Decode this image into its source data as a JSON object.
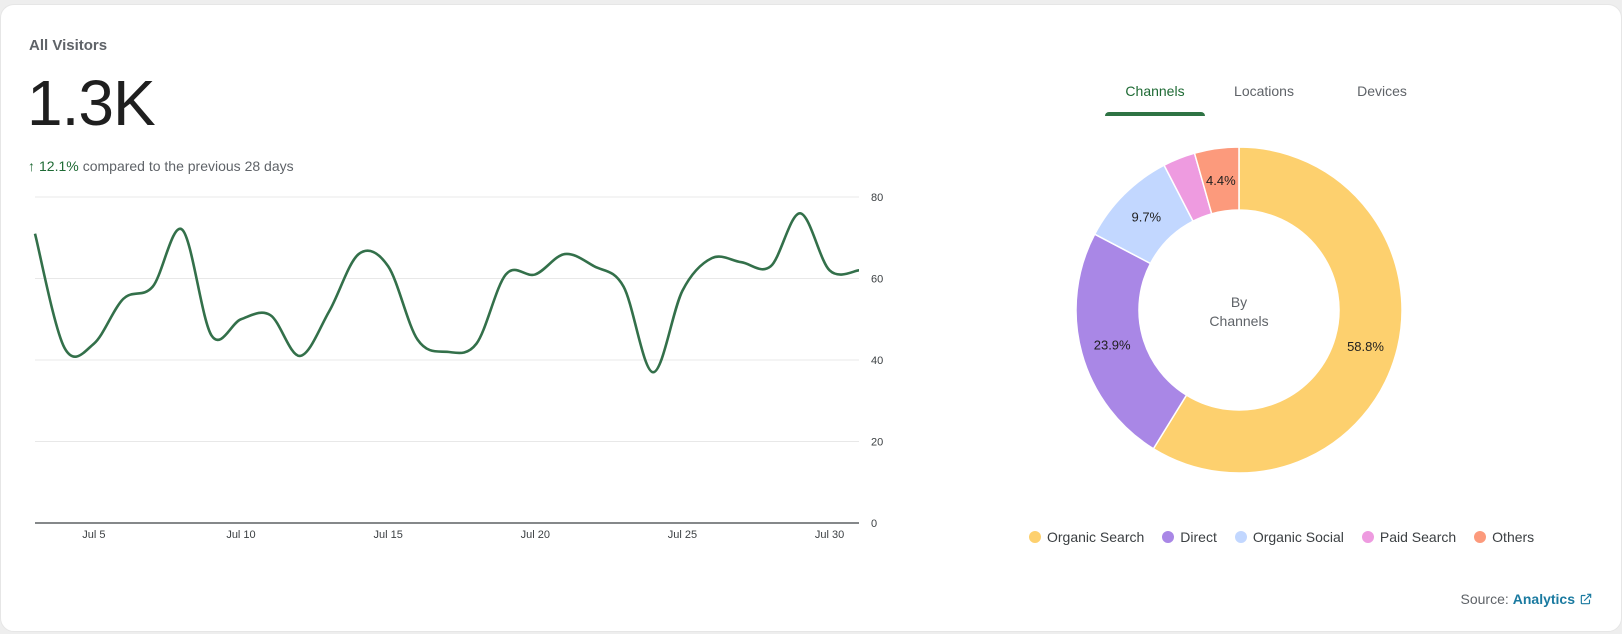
{
  "card": {
    "title": "All Visitors",
    "total": "1.3K",
    "change_pct": "12.1%",
    "change_text": "compared to the previous 28 days"
  },
  "chart_data": [
    {
      "type": "line",
      "x": [
        "Jul 3",
        "Jul 4",
        "Jul 5",
        "Jul 6",
        "Jul 7",
        "Jul 8",
        "Jul 9",
        "Jul 10",
        "Jul 11",
        "Jul 12",
        "Jul 13",
        "Jul 14",
        "Jul 15",
        "Jul 16",
        "Jul 17",
        "Jul 18",
        "Jul 19",
        "Jul 20",
        "Jul 21",
        "Jul 22",
        "Jul 23",
        "Jul 24",
        "Jul 25",
        "Jul 26",
        "Jul 27",
        "Jul 28",
        "Jul 29",
        "Jul 30",
        "Jul 31"
      ],
      "series": [
        {
          "values": [
            71,
            43,
            44,
            55,
            58,
            72,
            46,
            50,
            51,
            41,
            52,
            66,
            63,
            45,
            42,
            44,
            61,
            61,
            66,
            63,
            58,
            37,
            57,
            65,
            64,
            63,
            76,
            62,
            62
          ]
        }
      ],
      "x_tick_labels": [
        "Jul 5",
        "Jul 10",
        "Jul 15",
        "Jul 20",
        "Jul 25",
        "Jul 30"
      ],
      "y_tick_labels": [
        "0",
        "20",
        "40",
        "60",
        "80"
      ],
      "ylim": [
        0,
        80
      ],
      "grid": true,
      "line_color": "#33704a"
    },
    {
      "type": "pie",
      "title": "By Channels",
      "categories": [
        "Organic Search",
        "Direct",
        "Organic Social",
        "Paid Search",
        "Others"
      ],
      "values": [
        58.8,
        23.9,
        9.7,
        3.2,
        4.4
      ],
      "labels": [
        "58.8%",
        "23.9%",
        "9.7%",
        "",
        "4.4%"
      ],
      "colors": [
        "#fdd06e",
        "#a987e6",
        "#c2d7ff",
        "#ee9be0",
        "#fc9a7c"
      ]
    }
  ],
  "tabs": [
    {
      "label": "Channels",
      "active": true
    },
    {
      "label": "Locations",
      "active": false
    },
    {
      "label": "Devices",
      "active": false
    }
  ],
  "donut_center": {
    "line1": "By",
    "line2": "Channels"
  },
  "legend": [
    {
      "label": "Organic Search",
      "color": "#fdd06e"
    },
    {
      "label": "Direct",
      "color": "#a987e6"
    },
    {
      "label": "Organic Social",
      "color": "#c2d7ff"
    },
    {
      "label": "Paid Search",
      "color": "#ee9be0"
    },
    {
      "label": "Others",
      "color": "#fc9a7c"
    }
  ],
  "source": {
    "prefix": "Source:",
    "link": "Analytics",
    "icon": "external-link-icon"
  }
}
